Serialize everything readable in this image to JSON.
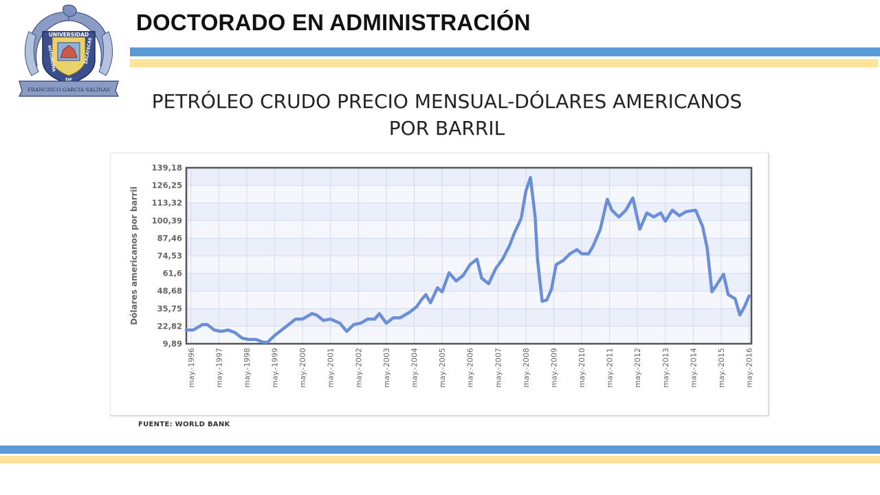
{
  "header": {
    "title": "DOCTORADO EN ADMINISTRACIÓN",
    "logo_text_top": "UNIVERSIDAD",
    "logo_text_left": "AUTONOMA",
    "logo_text_de": "DE",
    "logo_text_right": "ZACATECAS",
    "logo_ribbon": "FRANCISCO GARCIA SALINAS"
  },
  "slide": {
    "title_line1": "PETRÓLEO CRUDO PRECIO MENSUAL-DÓLARES AMERICANOS",
    "title_line2": "POR BARRIL",
    "source": "FUENTE: WORLD BANK"
  },
  "colors": {
    "accent_blue": "#5b9bd5",
    "accent_yellow": "#fde49a",
    "series": "#6b8fd6"
  },
  "chart_data": {
    "type": "line",
    "ylabel": "Dólares americanos por barril",
    "xlabel": "",
    "ylim": [
      9.89,
      139.18
    ],
    "y_ticks": [
      "139,18",
      "126,25",
      "113,32",
      "100,39",
      "87,46",
      "74,53",
      "61,6",
      "48,68",
      "35,75",
      "22,82",
      "9,89"
    ],
    "x_ticks": [
      "may.-1996",
      "may.-1997",
      "may.-1998",
      "may.-1999",
      "may.-2000",
      "may.-2001",
      "may.-2002",
      "may.-2003",
      "may.-2004",
      "may.-2005",
      "may.-2006",
      "may.-2007",
      "may.-2008",
      "may.-2009",
      "may.-2010",
      "may.-2011",
      "may.-2012",
      "may.-2013",
      "may.-2014",
      "may.-2015",
      "may.-2016"
    ],
    "grid": true,
    "x_start": "1996-03",
    "x_end": "2016-06",
    "series": [
      {
        "points": [
          [
            "1996-03",
            20
          ],
          [
            "1996-06",
            20
          ],
          [
            "1996-08",
            22
          ],
          [
            "1996-10",
            24
          ],
          [
            "1996-12",
            24
          ],
          [
            "1997-03",
            20
          ],
          [
            "1997-06",
            19
          ],
          [
            "1997-09",
            20
          ],
          [
            "1997-12",
            18
          ],
          [
            "1998-03",
            14
          ],
          [
            "1998-06",
            13
          ],
          [
            "1998-09",
            13
          ],
          [
            "1998-12",
            11
          ],
          [
            "1999-02",
            11
          ],
          [
            "1999-05",
            16
          ],
          [
            "1999-08",
            20
          ],
          [
            "1999-11",
            24
          ],
          [
            "2000-02",
            28
          ],
          [
            "2000-05",
            28
          ],
          [
            "2000-09",
            32
          ],
          [
            "2000-11",
            31
          ],
          [
            "2001-02",
            27
          ],
          [
            "2001-05",
            28
          ],
          [
            "2001-09",
            25
          ],
          [
            "2001-12",
            19
          ],
          [
            "2002-03",
            24
          ],
          [
            "2002-06",
            25
          ],
          [
            "2002-09",
            28
          ],
          [
            "2002-12",
            28
          ],
          [
            "2003-02",
            32
          ],
          [
            "2003-05",
            25
          ],
          [
            "2003-08",
            29
          ],
          [
            "2003-11",
            29
          ],
          [
            "2004-03",
            33
          ],
          [
            "2004-06",
            37
          ],
          [
            "2004-08",
            42
          ],
          [
            "2004-10",
            46
          ],
          [
            "2004-12",
            40
          ],
          [
            "2005-03",
            51
          ],
          [
            "2005-05",
            48
          ],
          [
            "2005-08",
            62
          ],
          [
            "2005-11",
            56
          ],
          [
            "2006-02",
            60
          ],
          [
            "2006-05",
            68
          ],
          [
            "2006-08",
            72
          ],
          [
            "2006-10",
            58
          ],
          [
            "2007-01",
            54
          ],
          [
            "2007-04",
            65
          ],
          [
            "2007-07",
            72
          ],
          [
            "2007-10",
            82
          ],
          [
            "2007-12",
            91
          ],
          [
            "2008-03",
            102
          ],
          [
            "2008-05",
            122
          ],
          [
            "2008-07",
            132
          ],
          [
            "2008-09",
            103
          ],
          [
            "2008-10",
            72
          ],
          [
            "2008-12",
            41
          ],
          [
            "2009-02",
            42
          ],
          [
            "2009-04",
            50
          ],
          [
            "2009-06",
            68
          ],
          [
            "2009-09",
            71
          ],
          [
            "2009-12",
            76
          ],
          [
            "2010-03",
            79
          ],
          [
            "2010-05",
            76
          ],
          [
            "2010-08",
            76
          ],
          [
            "2010-10",
            82
          ],
          [
            "2011-01",
            94
          ],
          [
            "2011-04",
            116
          ],
          [
            "2011-06",
            108
          ],
          [
            "2011-09",
            103
          ],
          [
            "2011-12",
            108
          ],
          [
            "2012-03",
            117
          ],
          [
            "2012-06",
            94
          ],
          [
            "2012-09",
            106
          ],
          [
            "2012-12",
            103
          ],
          [
            "2013-03",
            106
          ],
          [
            "2013-05",
            100
          ],
          [
            "2013-08",
            108
          ],
          [
            "2013-11",
            104
          ],
          [
            "2014-02",
            107
          ],
          [
            "2014-06",
            108
          ],
          [
            "2014-09",
            96
          ],
          [
            "2014-11",
            80
          ],
          [
            "2015-01",
            48
          ],
          [
            "2015-03",
            53
          ],
          [
            "2015-06",
            61
          ],
          [
            "2015-08",
            46
          ],
          [
            "2015-11",
            43
          ],
          [
            "2016-01",
            31
          ],
          [
            "2016-03",
            37
          ],
          [
            "2016-05",
            45
          ]
        ]
      }
    ]
  }
}
